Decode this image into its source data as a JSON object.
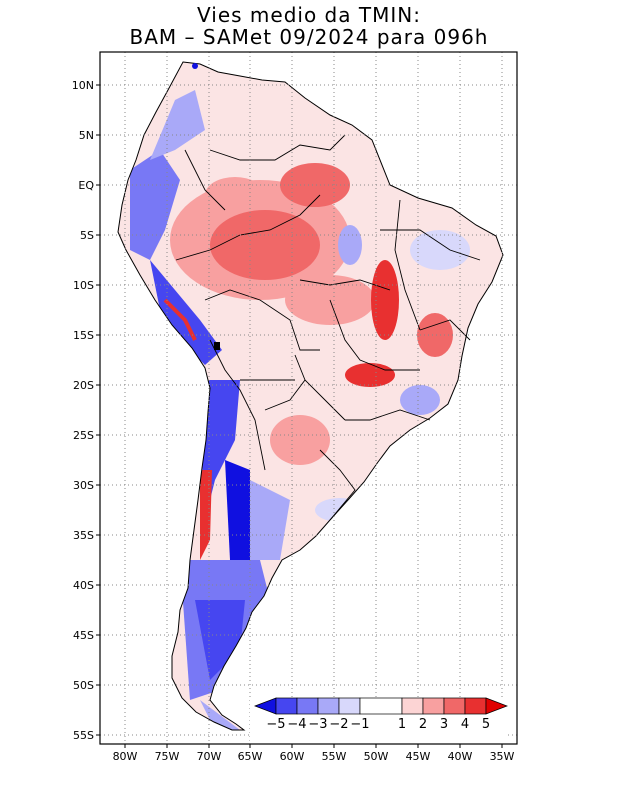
{
  "title": {
    "line1": "Vies medio da TMIN:",
    "line2": "BAM – SAMet 09/2024  para 096h"
  },
  "axes": {
    "lat_labels": [
      "10N",
      "5N",
      "EQ",
      "5S",
      "10S",
      "15S",
      "20S",
      "25S",
      "30S",
      "35S",
      "40S",
      "45S",
      "50S",
      "55S"
    ],
    "lon_labels": [
      "80W",
      "75W",
      "70W",
      "65W",
      "60W",
      "55W",
      "50W",
      "45W",
      "40W",
      "35W"
    ]
  },
  "colorbar": {
    "labels": [
      "−5",
      "−4",
      "−3",
      "−2",
      "−1",
      "1",
      "2",
      "3",
      "4",
      "5"
    ],
    "colors": [
      "#1010e0",
      "#4646f0",
      "#7878f5",
      "#a9a9f8",
      "#d8d8fb",
      "#ffffff",
      "#fcd4d4",
      "#f8a0a0",
      "#f06868",
      "#e83030",
      "#e00000"
    ]
  },
  "colors": {
    "border": "#000000",
    "grid": "#888888",
    "land": "#ffffff"
  }
}
